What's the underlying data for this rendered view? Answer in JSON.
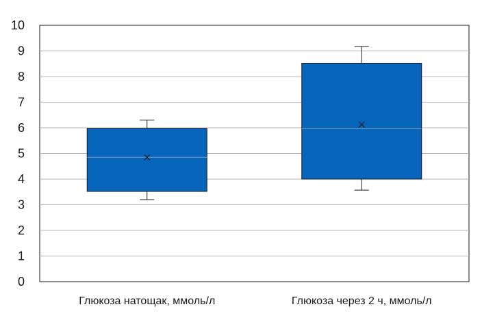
{
  "chart_data": {
    "type": "boxplot",
    "ylim": [
      0,
      10
    ],
    "yticks": [
      "0",
      "1",
      "2",
      "3",
      "4",
      "5",
      "6",
      "7",
      "8",
      "9",
      "10"
    ],
    "categories": [
      "Глюкоза натощак, ммоль/л",
      "Глюкоза через 2 ч, ммоль/л"
    ],
    "boxes": [
      {
        "whisker_min": 3.2,
        "q1": 3.52,
        "median": 4.85,
        "mean": 4.85,
        "q3": 5.98,
        "whisker_max": 6.3
      },
      {
        "whisker_min": 3.57,
        "q1": 4.0,
        "median": 5.98,
        "mean": 6.13,
        "q3": 8.52,
        "whisker_max": 9.17
      }
    ],
    "grid": true,
    "legend": "none",
    "box_color": "#0765bb",
    "box_edge_color": "#1a1a1a",
    "median_color": "#8aa3b8",
    "grid_color": "#b4b4b4"
  }
}
